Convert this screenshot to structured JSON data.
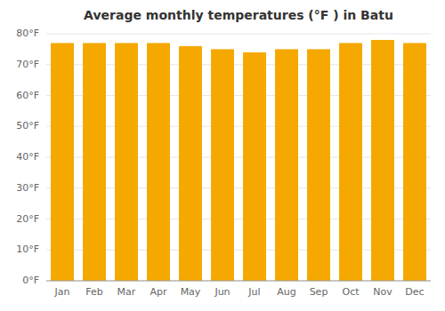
{
  "chart_data": {
    "type": "bar",
    "title": "Average monthly temperatures (°F ) in Batu",
    "categories": [
      "Jan",
      "Feb",
      "Mar",
      "Apr",
      "May",
      "Jun",
      "Jul",
      "Aug",
      "Sep",
      "Oct",
      "Nov",
      "Dec"
    ],
    "values": [
      77,
      77,
      77,
      77,
      76,
      75,
      74,
      75,
      75,
      77,
      78,
      77
    ],
    "color": "#F5A800",
    "ylim": [
      0,
      80
    ],
    "yticks": [
      {
        "value": 0,
        "label": "0°F"
      },
      {
        "value": 10,
        "label": "10°F"
      },
      {
        "value": 20,
        "label": "20°F"
      },
      {
        "value": 30,
        "label": "30°F"
      },
      {
        "value": 40,
        "label": "40°F"
      },
      {
        "value": 50,
        "label": "50°F"
      },
      {
        "value": 60,
        "label": "60°F"
      },
      {
        "value": 70,
        "label": "70°F"
      },
      {
        "value": 80,
        "label": "80°F"
      }
    ],
    "grid": true
  }
}
